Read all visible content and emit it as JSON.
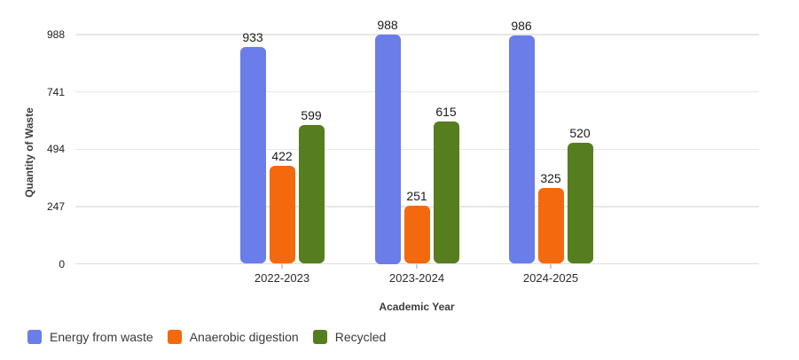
{
  "chart_data": {
    "type": "bar",
    "xlabel": "Academic Year",
    "ylabel": "Quantity of Waste",
    "categories": [
      "2022-2023",
      "2023-2024",
      "2024-2025"
    ],
    "series": [
      {
        "name": "Energy from waste",
        "color": "#6A7DE8",
        "values": [
          933,
          988,
          986
        ]
      },
      {
        "name": "Anaerobic digestion",
        "color": "#F4690D",
        "values": [
          422,
          251,
          325
        ]
      },
      {
        "name": "Recycled",
        "color": "#567D1E",
        "values": [
          599,
          615,
          520
        ]
      }
    ],
    "y_ticks": [
      0,
      247,
      494,
      741,
      988
    ],
    "ylim": [
      0,
      988
    ],
    "grid": true,
    "value_labels": true,
    "legend_position": "bottom-left"
  },
  "colors": {
    "background": "#ffffff",
    "gridline": "#e7e7e7",
    "axis_line": "#dedede",
    "tick_text": "#212121",
    "label_text": "#1b1b1b",
    "axis_title_text": "#3d3d3d",
    "legend_text": "#3a3a3a"
  }
}
